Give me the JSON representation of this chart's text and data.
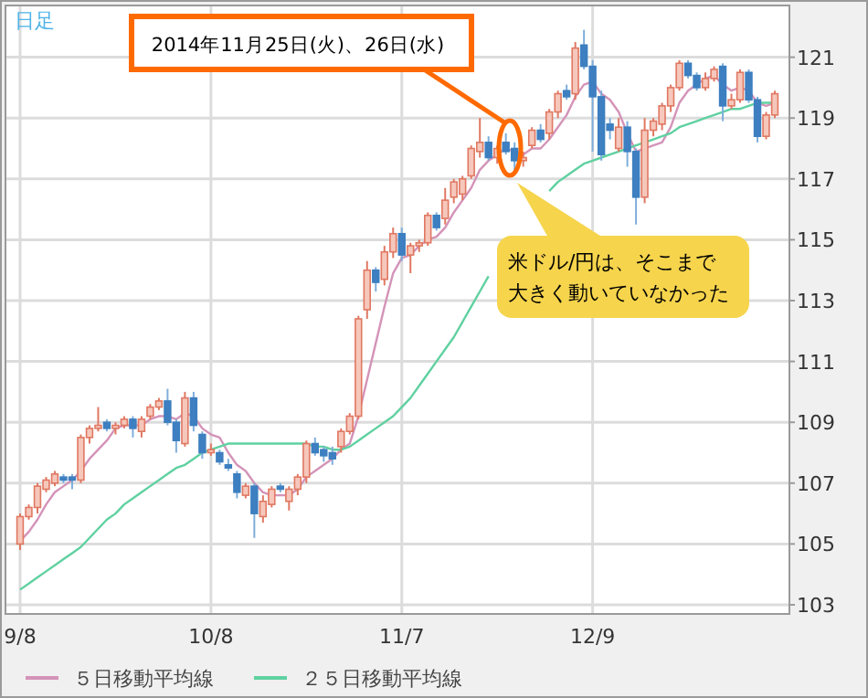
{
  "chart_data": {
    "type": "candlestick",
    "categories": [
      "9/8",
      null,
      null,
      null,
      null,
      null,
      null,
      null,
      null,
      null,
      null,
      null,
      null,
      null,
      null,
      null,
      null,
      null,
      null,
      null,
      null,
      null,
      "10/8",
      null,
      null,
      null,
      null,
      null,
      null,
      null,
      null,
      null,
      null,
      null,
      null,
      null,
      null,
      null,
      null,
      null,
      null,
      null,
      null,
      null,
      "11/7",
      null,
      null,
      null,
      null,
      null,
      null,
      null,
      null,
      null,
      null,
      null,
      null,
      null,
      null,
      null,
      null,
      null,
      null,
      null,
      null,
      null,
      "12/9",
      null,
      null,
      null,
      null,
      null,
      null,
      null,
      null,
      null,
      null,
      null,
      null,
      null,
      null,
      null,
      null,
      null,
      null,
      null,
      null,
      null
    ],
    "ohlc": [
      [
        105.0,
        106.0,
        104.8,
        105.9
      ],
      [
        105.9,
        106.3,
        105.8,
        106.2
      ],
      [
        106.2,
        107.0,
        106.0,
        106.9
      ],
      [
        106.8,
        107.2,
        106.7,
        107.1
      ],
      [
        107.0,
        107.4,
        106.9,
        107.3
      ],
      [
        107.2,
        107.3,
        107.0,
        107.1
      ],
      [
        107.2,
        107.3,
        106.8,
        107.1
      ],
      [
        107.1,
        108.6,
        107.0,
        108.5
      ],
      [
        108.5,
        108.9,
        108.3,
        108.8
      ],
      [
        108.8,
        109.5,
        108.7,
        108.9
      ],
      [
        109.0,
        109.1,
        108.7,
        108.8
      ],
      [
        108.8,
        109.0,
        108.6,
        108.9
      ],
      [
        108.9,
        109.2,
        108.8,
        109.1
      ],
      [
        109.1,
        109.2,
        108.5,
        108.8
      ],
      [
        108.7,
        109.2,
        108.5,
        109.1
      ],
      [
        109.2,
        109.6,
        109.1,
        109.5
      ],
      [
        109.5,
        109.8,
        109.4,
        109.7
      ],
      [
        109.7,
        110.1,
        108.9,
        109.0
      ],
      [
        109.0,
        109.1,
        108.0,
        108.4
      ],
      [
        108.3,
        110.0,
        108.2,
        109.8
      ],
      [
        109.8,
        110.0,
        108.7,
        108.9
      ],
      [
        108.6,
        108.7,
        107.8,
        108.0
      ],
      [
        108.0,
        108.3,
        107.9,
        108.1
      ],
      [
        108.0,
        108.1,
        107.6,
        107.7
      ],
      [
        107.6,
        107.8,
        107.4,
        107.5
      ],
      [
        107.3,
        107.4,
        106.5,
        106.7
      ],
      [
        106.6,
        107.0,
        106.5,
        106.9
      ],
      [
        106.9,
        107.0,
        105.2,
        106.0
      ],
      [
        105.9,
        106.6,
        105.7,
        106.4
      ],
      [
        106.3,
        106.9,
        106.2,
        106.8
      ],
      [
        106.9,
        107.0,
        106.7,
        106.8
      ],
      [
        106.4,
        106.9,
        106.1,
        106.8
      ],
      [
        106.8,
        107.3,
        106.6,
        107.2
      ],
      [
        107.2,
        108.4,
        107.0,
        108.3
      ],
      [
        108.3,
        108.5,
        107.9,
        108.0
      ],
      [
        108.1,
        108.2,
        107.7,
        107.9
      ],
      [
        108.0,
        108.2,
        107.6,
        107.8
      ],
      [
        108.2,
        108.8,
        108.0,
        108.7
      ],
      [
        108.7,
        109.3,
        108.6,
        109.2
      ],
      [
        109.2,
        112.5,
        109.1,
        112.4
      ],
      [
        112.7,
        114.3,
        112.4,
        114.0
      ],
      [
        114.0,
        114.1,
        113.3,
        113.6
      ],
      [
        113.7,
        114.8,
        113.5,
        114.6
      ],
      [
        114.6,
        115.4,
        114.4,
        115.2
      ],
      [
        115.2,
        115.4,
        114.3,
        114.5
      ],
      [
        114.5,
        114.9,
        113.9,
        114.8
      ],
      [
        114.8,
        115.0,
        114.6,
        114.9
      ],
      [
        114.9,
        115.9,
        114.8,
        115.8
      ],
      [
        115.8,
        115.9,
        115.3,
        115.4
      ],
      [
        115.7,
        116.7,
        115.5,
        116.3
      ],
      [
        116.4,
        117.0,
        116.2,
        116.9
      ],
      [
        116.5,
        117.1,
        116.3,
        117.0
      ],
      [
        117.1,
        118.1,
        117.0,
        118.0
      ],
      [
        117.9,
        119.0,
        117.7,
        118.2
      ],
      [
        118.2,
        118.4,
        117.6,
        117.7
      ],
      [
        117.7,
        118.1,
        117.5,
        118.0
      ],
      [
        118.2,
        118.5,
        117.8,
        117.9
      ],
      [
        118.0,
        118.2,
        117.2,
        117.6
      ],
      [
        117.6,
        117.9,
        117.4,
        117.7
      ],
      [
        118.1,
        118.7,
        118.0,
        118.6
      ],
      [
        118.6,
        118.8,
        118.2,
        118.3
      ],
      [
        118.5,
        119.3,
        118.3,
        119.2
      ],
      [
        119.2,
        119.9,
        119.0,
        119.8
      ],
      [
        119.9,
        120.1,
        119.6,
        119.7
      ],
      [
        119.8,
        121.5,
        119.6,
        121.3
      ],
      [
        121.4,
        121.9,
        120.6,
        120.7
      ],
      [
        120.7,
        120.9,
        117.9,
        119.7
      ],
      [
        119.7,
        119.9,
        117.6,
        117.8
      ],
      [
        118.8,
        119.0,
        118.3,
        118.6
      ],
      [
        118.0,
        119.0,
        117.9,
        118.7
      ],
      [
        118.7,
        118.9,
        117.4,
        117.9
      ],
      [
        117.9,
        118.0,
        115.5,
        116.4
      ],
      [
        116.4,
        119.0,
        116.2,
        118.6
      ],
      [
        118.6,
        119.0,
        118.4,
        118.9
      ],
      [
        118.8,
        119.5,
        118.6,
        119.4
      ],
      [
        119.4,
        120.1,
        119.2,
        120.0
      ],
      [
        120.0,
        120.9,
        119.9,
        120.8
      ],
      [
        120.8,
        120.9,
        120.3,
        120.4
      ],
      [
        120.4,
        120.5,
        119.9,
        120.0
      ],
      [
        120.0,
        120.5,
        119.9,
        120.3
      ],
      [
        120.3,
        120.7,
        120.2,
        120.6
      ],
      [
        120.7,
        120.8,
        118.9,
        119.4
      ],
      [
        119.4,
        119.8,
        119.3,
        119.6
      ],
      [
        119.6,
        120.6,
        119.5,
        120.5
      ],
      [
        120.5,
        120.6,
        119.5,
        119.6
      ],
      [
        119.6,
        119.7,
        118.2,
        118.4
      ],
      [
        118.4,
        119.2,
        118.3,
        119.1
      ],
      [
        119.1,
        119.9,
        119.0,
        119.8
      ]
    ],
    "series": [
      {
        "name": "５日移動平均線",
        "type": "line",
        "color": "#d493b8",
        "values": [
          105.1,
          105.4,
          105.8,
          106.3,
          106.7,
          106.9,
          107.1,
          107.4,
          107.8,
          108.1,
          108.4,
          108.8,
          108.9,
          108.9,
          108.9,
          109.1,
          109.2,
          109.2,
          109.1,
          109.3,
          109.2,
          108.8,
          108.6,
          108.5,
          108.0,
          107.6,
          107.4,
          107.0,
          106.7,
          106.6,
          106.6,
          106.6,
          106.8,
          107.2,
          107.4,
          107.6,
          107.8,
          108.1,
          108.3,
          109.2,
          110.4,
          111.6,
          112.8,
          113.9,
          114.4,
          114.5,
          114.8,
          115.0,
          115.1,
          115.4,
          115.9,
          116.3,
          116.7,
          117.3,
          117.6,
          117.8,
          118.0,
          117.9,
          117.8,
          118.0,
          118.0,
          118.3,
          118.7,
          119.1,
          119.7,
          120.1,
          120.2,
          119.8,
          119.6,
          119.2,
          118.5,
          117.9,
          118.0,
          118.1,
          118.2,
          118.7,
          119.5,
          119.9,
          120.1,
          120.3,
          120.4,
          120.1,
          119.9,
          120.0,
          119.9,
          119.5,
          119.4,
          119.5
        ]
      },
      {
        "name": "２５日移動平均線",
        "type": "line",
        "color": "#5fd1a0",
        "values": [
          103.5,
          103.7,
          103.9,
          104.1,
          104.3,
          104.5,
          104.7,
          104.9,
          105.2,
          105.5,
          105.8,
          106.0,
          106.3,
          106.5,
          106.7,
          106.9,
          107.1,
          107.3,
          107.5,
          107.6,
          107.8,
          108.0,
          108.1,
          108.2,
          108.3,
          108.3,
          108.3,
          108.3,
          108.3,
          108.3,
          108.3,
          108.3,
          108.3,
          108.3,
          108.2,
          108.2,
          108.1,
          108.1,
          108.2,
          108.4,
          108.6,
          108.8,
          109.0,
          109.2,
          109.5,
          109.8,
          110.2,
          110.6,
          111.0,
          111.4,
          111.8,
          112.3,
          112.8,
          113.3,
          113.8,
          null,
          null,
          null,
          null,
          null,
          null,
          116.6,
          116.9,
          117.1,
          117.3,
          117.5,
          117.6,
          117.7,
          117.8,
          117.9,
          118.0,
          118.1,
          118.2,
          118.3,
          118.4,
          118.5,
          118.7,
          118.8,
          118.9,
          119.0,
          119.1,
          119.2,
          119.3,
          119.3,
          119.4,
          119.5,
          119.5,
          119.5
        ]
      }
    ],
    "ylim": [
      102.7,
      122.7
    ],
    "yticks": [
      103,
      105,
      107,
      109,
      111,
      113,
      115,
      117,
      119,
      121
    ],
    "grid": true,
    "legend": "bottom",
    "annotations": [
      "日足",
      "2014年11月25日(火)、26日(水)",
      "米ドル/円は、そこまで大きく動いていなかった"
    ]
  }
}
